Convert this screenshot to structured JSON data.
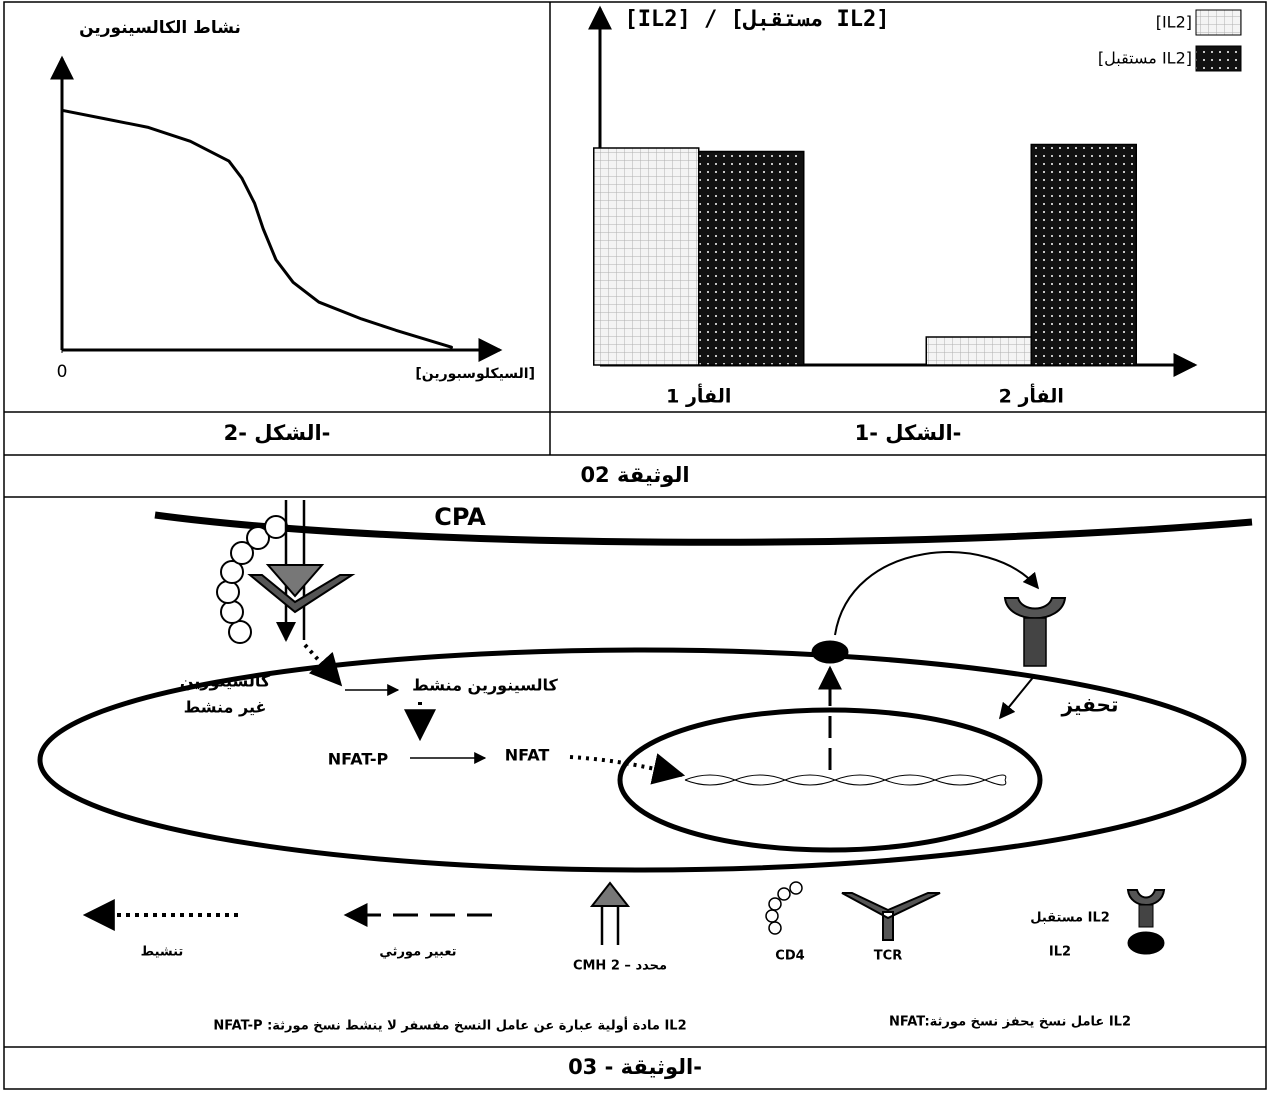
{
  "chart_data": [
    {
      "type": "bar",
      "title": "[IL2] / [مستقبل IL2]",
      "categories": [
        "الفأر 1",
        "الفأر 2"
      ],
      "series": [
        {
          "name": "[IL2]",
          "color": "#f4f4f4",
          "values": [
            62,
            8
          ]
        },
        {
          "name": "[مستقبل IL2]",
          "color": "#111111",
          "values": [
            61,
            63
          ]
        }
      ],
      "ylim": [
        0,
        100
      ],
      "legend": "top-right"
    },
    {
      "type": "line",
      "ylabel": "نشاط الكالسينورين",
      "xlabel": "[السيكلوسبورين]",
      "x": [
        0,
        10,
        20,
        30,
        39,
        42,
        45,
        47,
        50,
        54,
        60,
        70,
        78,
        91
      ],
      "values": [
        85,
        82,
        79,
        74,
        67,
        61,
        52,
        43,
        32,
        24,
        17,
        11,
        7,
        1
      ],
      "xlim": [
        0,
        100
      ],
      "ylim": [
        0,
        100
      ],
      "xticks": [
        0
      ],
      "color": "#000000"
    }
  ],
  "figure_captions": [
    "الشكل -1-",
    "الشكل -2-"
  ],
  "document_02": "الوثيقة 02",
  "diagram": {
    "cpa": "CPA",
    "inactive_calcineurin": [
      "كالسينورين",
      "غير منشط"
    ],
    "active_calcineurin": "كالسينورين منشط",
    "nfat_p": "NFAT-P",
    "nfat": "NFAT",
    "stimulation": "تحفيز",
    "legend": {
      "activation": "تنشيط",
      "gene_expression": "تعبير مورثي",
      "cmh": "CMH 2 – محدد",
      "cd4": "CD4",
      "tcr": "TCR",
      "receptor": "مستقبل IL2",
      "il2": "IL2"
    },
    "notes": [
      "NFAT:عامل نسخ يحفز نسخ مورثة IL2",
      "NFAT-P :مادة أولية عبارة عن عامل النسخ مفسفر لا ينشط نسخ مورثة IL2"
    ]
  },
  "document_03": "الوثيقة - 03-"
}
